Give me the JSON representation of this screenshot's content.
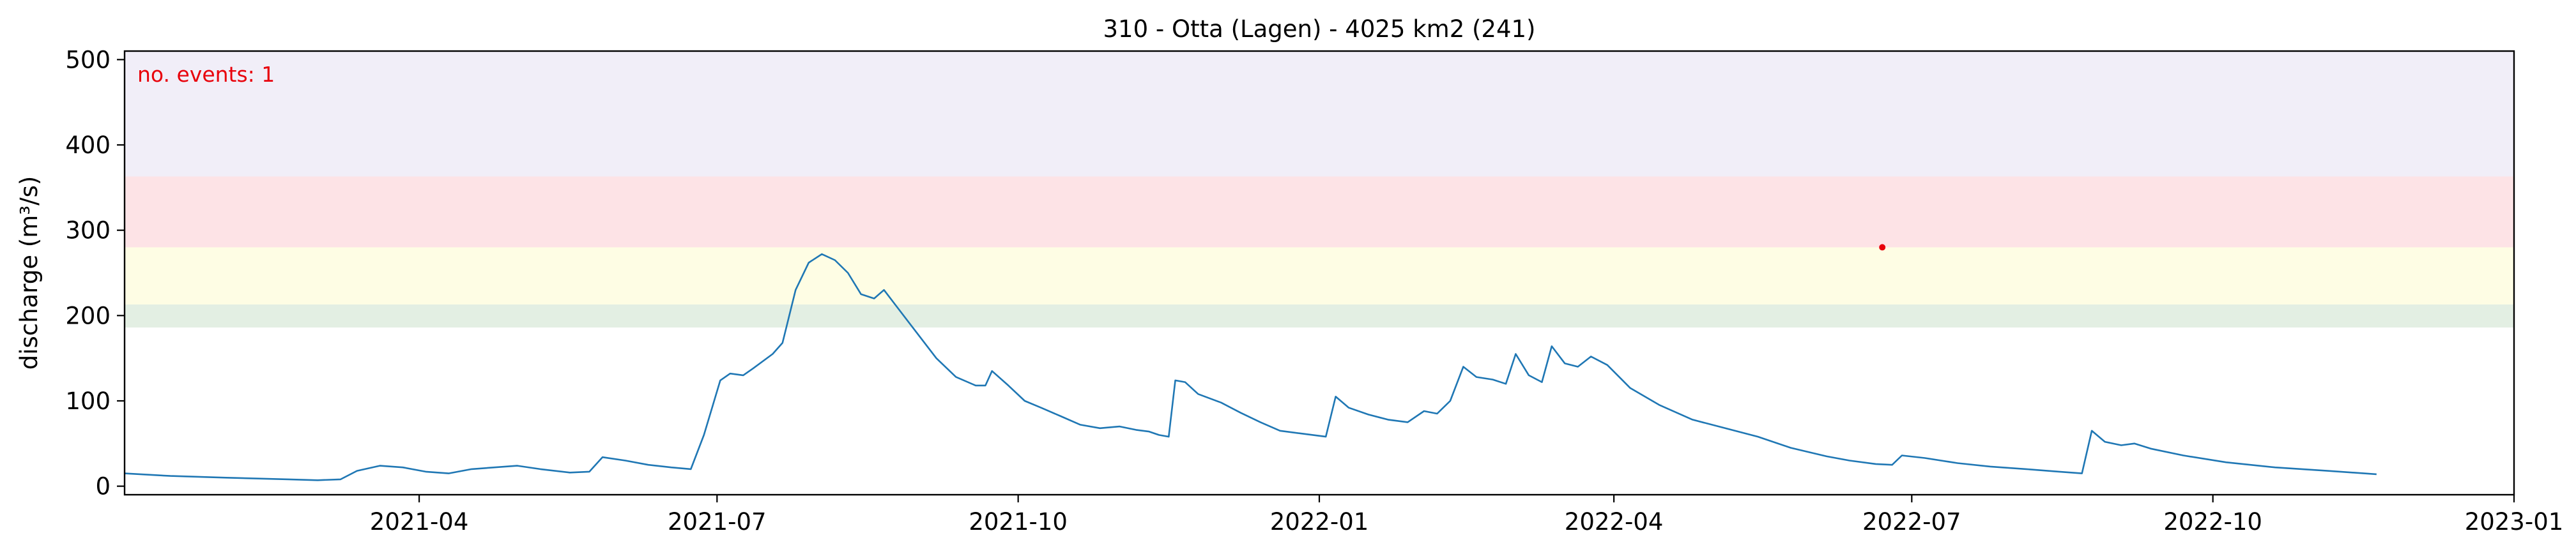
{
  "chart_data": {
    "type": "line",
    "title": "310 - Otta (Lagen) - 4025 km2 (241)",
    "xlabel": "",
    "ylabel": "discharge (m³/s)",
    "x_range": [
      "2021-01-01",
      "2023-01-01"
    ],
    "ylim": [
      -10,
      510
    ],
    "y_ticks": [
      0,
      100,
      200,
      300,
      400,
      500
    ],
    "x_ticks": [
      {
        "date": "2021-04-01",
        "label": "2021-04"
      },
      {
        "date": "2021-07-01",
        "label": "2021-07"
      },
      {
        "date": "2021-10-01",
        "label": "2021-10"
      },
      {
        "date": "2022-01-01",
        "label": "2022-01"
      },
      {
        "date": "2022-04-01",
        "label": "2022-04"
      },
      {
        "date": "2022-07-01",
        "label": "2022-07"
      },
      {
        "date": "2022-10-01",
        "label": "2022-10"
      },
      {
        "date": "2023-01-01",
        "label": "2023-01"
      }
    ],
    "grid": false,
    "threshold_bands": [
      {
        "from": 186,
        "to": 213,
        "color": "#e3efe3"
      },
      {
        "from": 213,
        "to": 280,
        "color": "#fefde4"
      },
      {
        "from": 280,
        "to": 363,
        "color": "#fde3e6"
      },
      {
        "from": 363,
        "to": 510,
        "color": "#f1eef8"
      }
    ],
    "annotation": {
      "text": "no. events: 1",
      "color": "#e8000b"
    },
    "series": [
      {
        "color": "#1f77b4",
        "points": [
          [
            "2021-01-01",
            15
          ],
          [
            "2021-01-15",
            12
          ],
          [
            "2021-02-01",
            10
          ],
          [
            "2021-02-20",
            8
          ],
          [
            "2021-03-01",
            7
          ],
          [
            "2021-03-08",
            8
          ],
          [
            "2021-03-13",
            18
          ],
          [
            "2021-03-20",
            24
          ],
          [
            "2021-03-27",
            22
          ],
          [
            "2021-04-03",
            17
          ],
          [
            "2021-04-10",
            15
          ],
          [
            "2021-04-17",
            20
          ],
          [
            "2021-04-24",
            22
          ],
          [
            "2021-05-01",
            24
          ],
          [
            "2021-05-08",
            20
          ],
          [
            "2021-05-17",
            16
          ],
          [
            "2021-05-23",
            17
          ],
          [
            "2021-05-27",
            34
          ],
          [
            "2021-06-03",
            30
          ],
          [
            "2021-06-10",
            25
          ],
          [
            "2021-06-17",
            22
          ],
          [
            "2021-06-23",
            20
          ],
          [
            "2021-06-27",
            60
          ],
          [
            "2021-07-02",
            124
          ],
          [
            "2021-07-05",
            132
          ],
          [
            "2021-07-09",
            130
          ],
          [
            "2021-07-12",
            138
          ],
          [
            "2021-07-18",
            155
          ],
          [
            "2021-07-21",
            168
          ],
          [
            "2021-07-25",
            230
          ],
          [
            "2021-07-29",
            262
          ],
          [
            "2021-08-02",
            272
          ],
          [
            "2021-08-06",
            265
          ],
          [
            "2021-08-10",
            250
          ],
          [
            "2021-08-14",
            225
          ],
          [
            "2021-08-18",
            220
          ],
          [
            "2021-08-21",
            230
          ],
          [
            "2021-08-25",
            210
          ],
          [
            "2021-08-31",
            180
          ],
          [
            "2021-09-06",
            150
          ],
          [
            "2021-09-12",
            128
          ],
          [
            "2021-09-18",
            118
          ],
          [
            "2021-09-21",
            118
          ],
          [
            "2021-09-23",
            135
          ],
          [
            "2021-09-28",
            118
          ],
          [
            "2021-10-03",
            100
          ],
          [
            "2021-10-08",
            92
          ],
          [
            "2021-10-14",
            82
          ],
          [
            "2021-10-20",
            72
          ],
          [
            "2021-10-26",
            68
          ],
          [
            "2021-11-01",
            70
          ],
          [
            "2021-11-06",
            66
          ],
          [
            "2021-11-10",
            64
          ],
          [
            "2021-11-13",
            60
          ],
          [
            "2021-11-16",
            58
          ],
          [
            "2021-11-18",
            124
          ],
          [
            "2021-11-21",
            122
          ],
          [
            "2021-11-25",
            108
          ],
          [
            "2021-12-02",
            98
          ],
          [
            "2021-12-08",
            86
          ],
          [
            "2021-12-14",
            75
          ],
          [
            "2021-12-20",
            65
          ],
          [
            "2021-12-26",
            62
          ],
          [
            "2021-12-30",
            60
          ],
          [
            "2022-01-03",
            58
          ],
          [
            "2022-01-06",
            105
          ],
          [
            "2022-01-10",
            92
          ],
          [
            "2022-01-16",
            84
          ],
          [
            "2022-01-22",
            78
          ],
          [
            "2022-01-28",
            75
          ],
          [
            "2022-02-02",
            88
          ],
          [
            "2022-02-06",
            85
          ],
          [
            "2022-02-10",
            100
          ],
          [
            "2022-02-14",
            140
          ],
          [
            "2022-02-18",
            128
          ],
          [
            "2022-02-23",
            125
          ],
          [
            "2022-02-27",
            120
          ],
          [
            "2022-03-02",
            155
          ],
          [
            "2022-03-06",
            130
          ],
          [
            "2022-03-10",
            122
          ],
          [
            "2022-03-13",
            164
          ],
          [
            "2022-03-17",
            144
          ],
          [
            "2022-03-21",
            140
          ],
          [
            "2022-03-25",
            152
          ],
          [
            "2022-03-30",
            142
          ],
          [
            "2022-04-06",
            115
          ],
          [
            "2022-04-15",
            95
          ],
          [
            "2022-04-25",
            78
          ],
          [
            "2022-05-05",
            68
          ],
          [
            "2022-05-15",
            58
          ],
          [
            "2022-05-25",
            45
          ],
          [
            "2022-06-05",
            35
          ],
          [
            "2022-06-12",
            30
          ],
          [
            "2022-06-20",
            26
          ],
          [
            "2022-06-25",
            25
          ],
          [
            "2022-06-28",
            36
          ],
          [
            "2022-07-05",
            33
          ],
          [
            "2022-07-15",
            27
          ],
          [
            "2022-07-25",
            23
          ],
          [
            "2022-08-05",
            20
          ],
          [
            "2022-08-15",
            17
          ],
          [
            "2022-08-22",
            15
          ],
          [
            "2022-08-25",
            65
          ],
          [
            "2022-08-29",
            52
          ],
          [
            "2022-09-03",
            48
          ],
          [
            "2022-09-07",
            50
          ],
          [
            "2022-09-12",
            44
          ],
          [
            "2022-09-22",
            36
          ],
          [
            "2022-10-05",
            28
          ],
          [
            "2022-10-20",
            22
          ],
          [
            "2022-11-05",
            18
          ],
          [
            "2022-11-20",
            14
          ]
        ]
      }
    ],
    "event_point": {
      "date": "2022-06-22",
      "value": 280,
      "color": "#e8000b"
    }
  }
}
